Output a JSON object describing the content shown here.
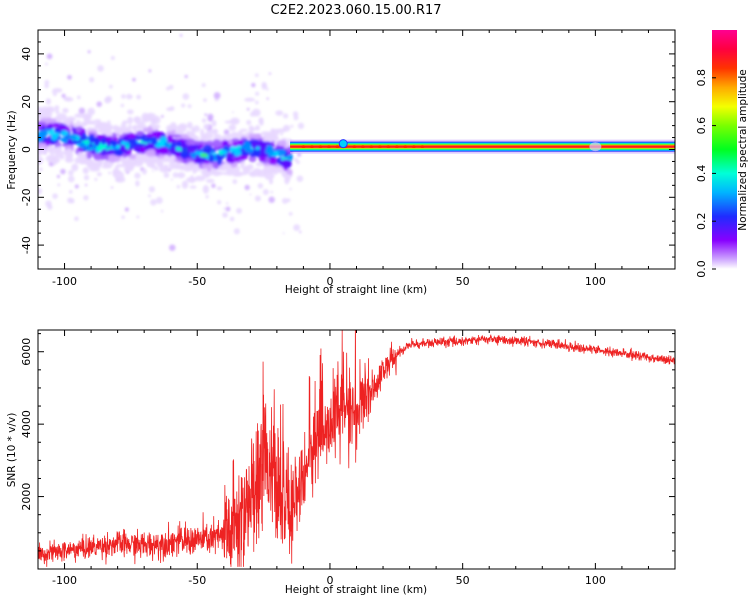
{
  "figure": {
    "title": "C2E2.2023.060.15.00.R17"
  },
  "colors": {
    "snr_line": "#ee2222",
    "spectrum_ridge": "#ff1a1a",
    "noise_low": "#8800ff",
    "noise_mid": "#00e5ff"
  },
  "chart_data": [
    {
      "type": "heatmap",
      "title": "",
      "xlabel": "Height of straight line (km)",
      "ylabel": "Frequency (Hz)",
      "xlim": [
        -110,
        130
      ],
      "ylim": [
        -50,
        50
      ],
      "xticks": [
        -100,
        -50,
        0,
        50,
        100
      ],
      "xtick_labels": [
        "-100",
        "-50",
        "0",
        "50",
        "100"
      ],
      "yticks": [
        -40,
        -20,
        0,
        20,
        40
      ],
      "ytick_labels": [
        "-40",
        "-20",
        "0",
        "20",
        "40"
      ],
      "grid": false,
      "description_ridge": {
        "x_start": -15,
        "x_end": 130,
        "frequency_hz": 1.2,
        "amplitude": 0.95
      },
      "noisy_region": {
        "x_start": -110,
        "x_end": -15,
        "frequency_center_start": 5,
        "frequency_center_end": -3,
        "frequency_spread_hz": 12
      },
      "colorbar": {
        "label": "Normalized spectral amplitude",
        "range": [
          0.0,
          1.0
        ],
        "ticks": [
          0.0,
          0.2,
          0.4,
          0.6,
          0.8
        ],
        "tick_labels": [
          "0.0",
          "0.2",
          "0.4",
          "0.6",
          "0.8"
        ],
        "colormap": "hsv"
      }
    },
    {
      "type": "line",
      "title": "",
      "xlabel": "Height of straight line (km)",
      "ylabel": "SNR (10 * v/v)",
      "xlim": [
        -110,
        130
      ],
      "ylim": [
        0,
        6600
      ],
      "xticks": [
        -100,
        -50,
        0,
        50,
        100
      ],
      "xtick_labels": [
        "-100",
        "-50",
        "0",
        "50",
        "100"
      ],
      "yticks": [
        2000,
        4000,
        6000
      ],
      "ytick_labels": [
        "2000",
        "4000",
        "6000"
      ],
      "grid": false,
      "series": [
        {
          "x": [
            -110,
            -100,
            -90,
            -80,
            -70,
            -60,
            -50,
            -40,
            -35,
            -30,
            -25,
            -20,
            -15,
            -10,
            -5,
            0,
            5,
            10,
            15,
            20,
            25,
            30,
            40,
            50,
            60,
            70,
            80,
            90,
            100,
            110,
            120,
            130
          ],
          "values": [
            400,
            500,
            600,
            700,
            650,
            750,
            800,
            900,
            1200,
            2000,
            3500,
            2200,
            1500,
            2800,
            3500,
            4000,
            4500,
            4300,
            4800,
            5500,
            5900,
            6200,
            6250,
            6300,
            6350,
            6300,
            6250,
            6150,
            6050,
            5950,
            5850,
            5750
          ]
        }
      ]
    }
  ]
}
